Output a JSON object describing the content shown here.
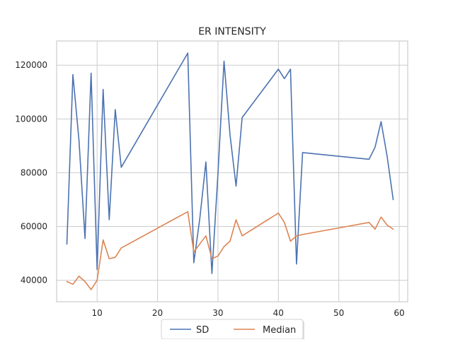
{
  "chart_data": {
    "type": "line",
    "title": "ER INTENSITY",
    "xlabel": "",
    "ylabel": "",
    "xlim": [
      3.3,
      61.4
    ],
    "ylim": [
      32000,
      129000
    ],
    "x_ticks": [
      10,
      20,
      30,
      40,
      50,
      60
    ],
    "y_ticks": [
      40000,
      60000,
      80000,
      100000,
      120000
    ],
    "x_tick_labels": [
      "10",
      "20",
      "30",
      "40",
      "50",
      "60"
    ],
    "y_tick_labels": [
      "40000",
      "60000",
      "80000",
      "100000",
      "120000"
    ],
    "grid": true,
    "legend_position": "bottom-center",
    "series": [
      {
        "name": "SD",
        "color": "#4c72b0",
        "x": [
          5,
          6,
          7,
          8,
          9,
          10,
          11,
          12,
          13,
          14,
          25,
          26,
          27,
          28,
          29,
          30,
          31,
          32,
          33,
          34,
          40,
          41,
          42,
          43,
          44,
          55,
          56,
          57,
          58,
          59
        ],
        "values": [
          53500,
          116500,
          92000,
          55500,
          117000,
          44000,
          111000,
          62500,
          103500,
          82000,
          124500,
          46500,
          63000,
          84000,
          42500,
          79500,
          121500,
          94000,
          75000,
          100500,
          118500,
          115000,
          118500,
          46000,
          87500,
          85000,
          89500,
          99000,
          86000,
          70000
        ]
      },
      {
        "name": "Median",
        "color": "#dd8452",
        "x": [
          5,
          6,
          7,
          8,
          9,
          10,
          11,
          12,
          13,
          14,
          25,
          26,
          27,
          28,
          29,
          30,
          31,
          32,
          33,
          34,
          40,
          41,
          42,
          43,
          44,
          55,
          56,
          57,
          58,
          59
        ],
        "values": [
          39500,
          38500,
          41500,
          39500,
          36500,
          40000,
          55000,
          48000,
          48500,
          52000,
          65500,
          50500,
          53500,
          56500,
          48000,
          49000,
          52500,
          54500,
          62500,
          56500,
          65000,
          61500,
          54500,
          56500,
          57000,
          61500,
          59000,
          63500,
          60500,
          59000
        ]
      }
    ]
  }
}
